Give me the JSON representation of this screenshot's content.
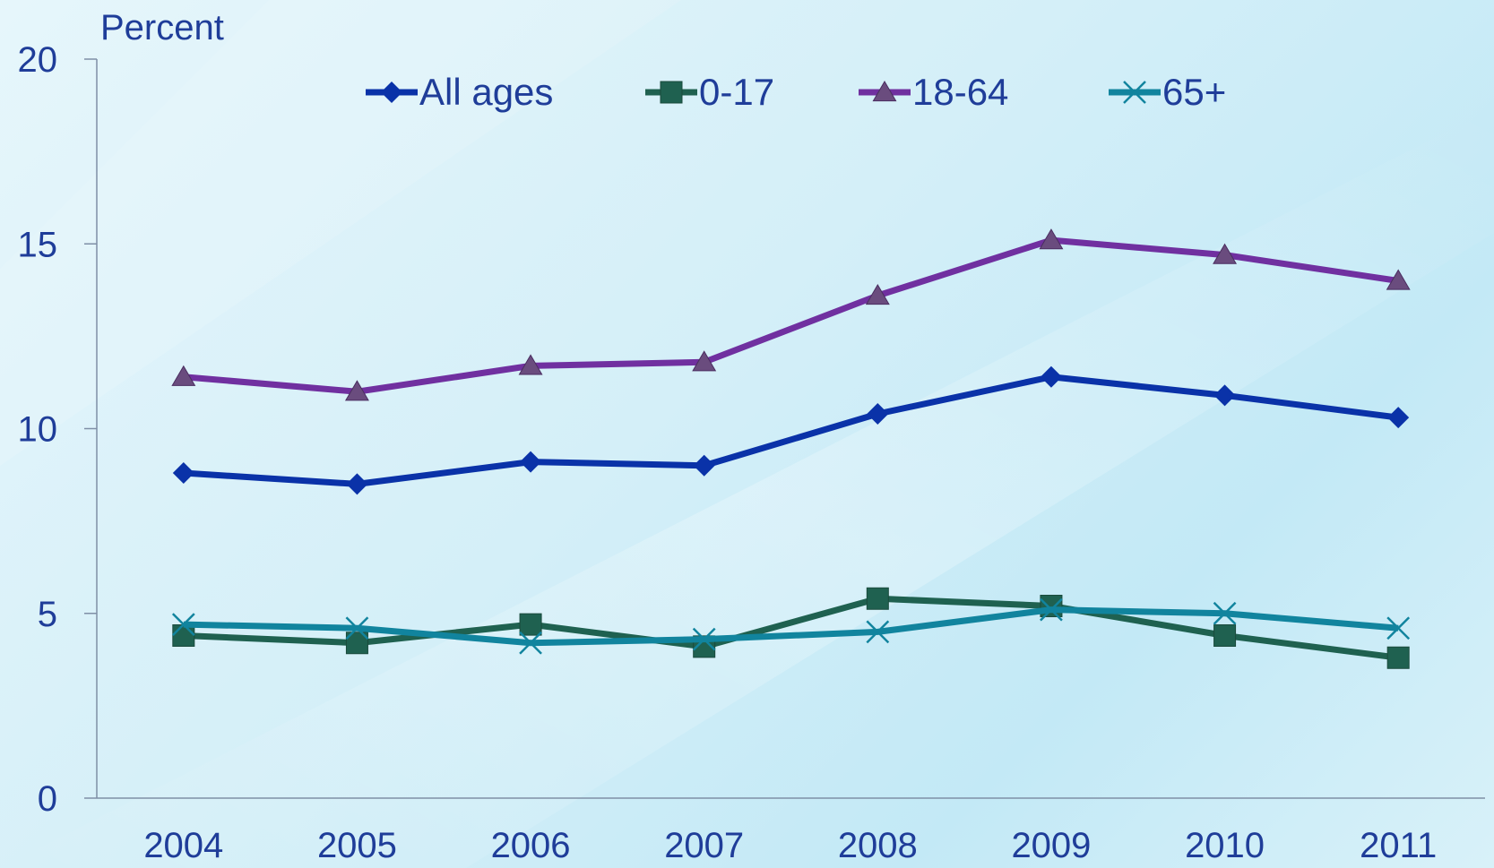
{
  "chart_data": {
    "type": "line",
    "ylabel": "Percent",
    "ylim": [
      0,
      20
    ],
    "yticks": [
      "0",
      "5",
      "10",
      "15",
      "20"
    ],
    "x": [
      "2004",
      "2005",
      "2006",
      "2007",
      "2008",
      "2009",
      "2010",
      "2011"
    ],
    "legend_position": "top",
    "grid": false,
    "colors": {
      "axis": "#7f8fa6",
      "text": "#1f3d99"
    },
    "series": [
      {
        "name": "All ages",
        "marker": "diamond",
        "color": "#0a32a8",
        "values": [
          8.8,
          8.5,
          9.1,
          9.0,
          10.4,
          11.4,
          10.9,
          10.3
        ]
      },
      {
        "name": "0-17",
        "marker": "square",
        "color": "#1f6150",
        "values": [
          4.4,
          4.2,
          4.7,
          4.1,
          5.4,
          5.2,
          4.4,
          3.8
        ]
      },
      {
        "name": "18-64",
        "marker": "triangle",
        "color": "#7030a0",
        "values": [
          11.4,
          11.0,
          11.7,
          11.8,
          13.6,
          15.1,
          14.7,
          14.0
        ]
      },
      {
        "name": "65+",
        "marker": "x",
        "color": "#11849e",
        "values": [
          4.7,
          4.6,
          4.2,
          4.3,
          4.5,
          5.1,
          5.0,
          4.6
        ]
      }
    ]
  }
}
